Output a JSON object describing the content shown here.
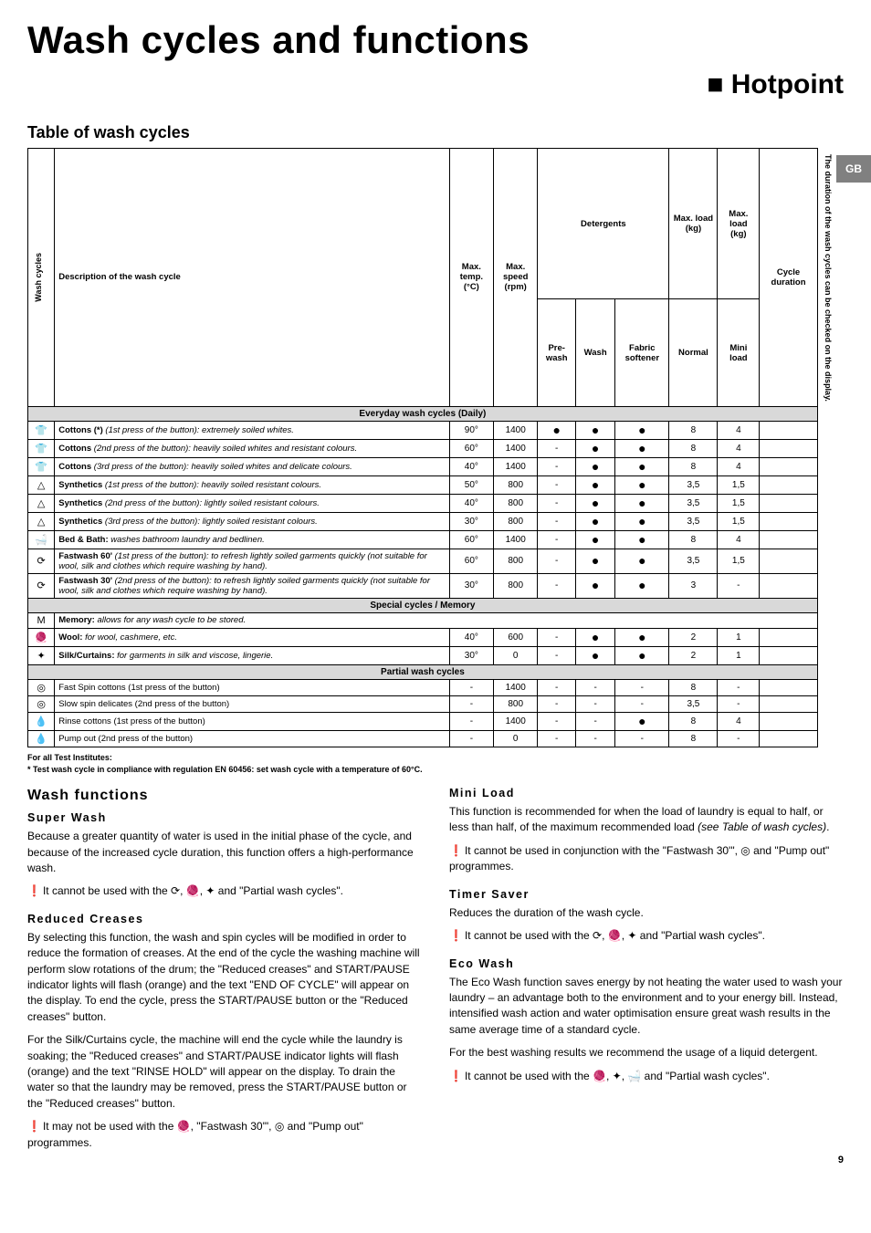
{
  "page": {
    "title": "Wash cycles and functions",
    "brand": "Hotpoint",
    "region_tag": "GB",
    "page_number": "9"
  },
  "table": {
    "heading": "Table of wash cycles",
    "columns": {
      "wash_cycles": "Wash cycles",
      "description": "Description of the wash cycle",
      "max_temp": "Max. temp. (°C)",
      "max_speed": "Max. speed (rpm)",
      "detergents": "Detergents",
      "pre_wash": "Pre-wash",
      "wash": "Wash",
      "fabric_softener": "Fabric softener",
      "max_load_normal": "Max. load (kg)",
      "normal": "Normal",
      "max_load_mini": "Max. load (kg)",
      "mini_load": "Mini load",
      "cycle_duration": "Cycle duration"
    },
    "side_note": "The duration of the wash cycles can be checked on the display.",
    "categories": {
      "everyday": "Everyday wash cycles (Daily)",
      "special": "Special cycles / Memory",
      "partial": "Partial wash cycles"
    },
    "rows": [
      {
        "cat": "everyday",
        "icon": "👕",
        "desc": "Cottons (*) (1st press of the button): extremely soiled whites.",
        "bold": "Cottons (*)",
        "temp": "90°",
        "rpm": "1400",
        "pre": "●",
        "wash": "●",
        "soft": "●",
        "normal": "8",
        "mini": "4"
      },
      {
        "cat": "everyday",
        "icon": "👕",
        "desc": "Cottons (2nd press of the button): heavily soiled whites and resistant colours.",
        "bold": "Cottons",
        "temp": "60°",
        "rpm": "1400",
        "pre": "-",
        "wash": "●",
        "soft": "●",
        "normal": "8",
        "mini": "4"
      },
      {
        "cat": "everyday",
        "icon": "👕",
        "desc": "Cottons (3rd press of the button): heavily soiled whites and delicate colours.",
        "bold": "Cottons",
        "temp": "40°",
        "rpm": "1400",
        "pre": "-",
        "wash": "●",
        "soft": "●",
        "normal": "8",
        "mini": "4"
      },
      {
        "cat": "everyday",
        "icon": "△",
        "desc": "Synthetics (1st press of the button): heavily soiled resistant colours.",
        "bold": "Synthetics",
        "temp": "50°",
        "rpm": "800",
        "pre": "-",
        "wash": "●",
        "soft": "●",
        "normal": "3,5",
        "mini": "1,5"
      },
      {
        "cat": "everyday",
        "icon": "△",
        "desc": "Synthetics (2nd press of the button): lightly soiled resistant colours.",
        "bold": "Synthetics",
        "temp": "40°",
        "rpm": "800",
        "pre": "-",
        "wash": "●",
        "soft": "●",
        "normal": "3,5",
        "mini": "1,5"
      },
      {
        "cat": "everyday",
        "icon": "△",
        "desc": "Synthetics (3rd press of the button): lightly soiled resistant colours.",
        "bold": "Synthetics",
        "temp": "30°",
        "rpm": "800",
        "pre": "-",
        "wash": "●",
        "soft": "●",
        "normal": "3,5",
        "mini": "1,5"
      },
      {
        "cat": "everyday",
        "icon": "🛁",
        "desc": "Bed & Bath: washes bathroom laundry and bedlinen.",
        "bold": "Bed & Bath:",
        "temp": "60°",
        "rpm": "1400",
        "pre": "-",
        "wash": "●",
        "soft": "●",
        "normal": "8",
        "mini": "4"
      },
      {
        "cat": "everyday",
        "icon": "⟳",
        "desc": "Fastwash 60' (1st press of the button): to refresh lightly soiled garments quickly (not suitable for wool, silk and clothes which require washing by hand).",
        "bold": "Fastwash 60'",
        "temp": "60°",
        "rpm": "800",
        "pre": "-",
        "wash": "●",
        "soft": "●",
        "normal": "3,5",
        "mini": "1,5"
      },
      {
        "cat": "everyday",
        "icon": "⟳",
        "desc": "Fastwash 30' (2nd press of the button): to refresh lightly soiled garments quickly (not suitable for wool, silk and clothes which require washing by hand).",
        "bold": "Fastwash 30'",
        "temp": "30°",
        "rpm": "800",
        "pre": "-",
        "wash": "●",
        "soft": "●",
        "normal": "3",
        "mini": "-"
      },
      {
        "cat": "special",
        "icon": "M",
        "desc": "Memory: allows for any wash cycle to be stored.",
        "bold": "Memory:",
        "temp": "",
        "rpm": "",
        "pre": "",
        "wash": "",
        "soft": "",
        "normal": "",
        "mini": ""
      },
      {
        "cat": "special",
        "icon": "🧶",
        "desc": "Wool: for wool, cashmere, etc.",
        "bold": "Wool:",
        "temp": "40°",
        "rpm": "600",
        "pre": "-",
        "wash": "●",
        "soft": "●",
        "normal": "2",
        "mini": "1"
      },
      {
        "cat": "special",
        "icon": "✦",
        "desc": "Silk/Curtains: for garments in silk and viscose, lingerie.",
        "bold": "Silk/Curtains:",
        "temp": "30°",
        "rpm": "0",
        "pre": "-",
        "wash": "●",
        "soft": "●",
        "normal": "2",
        "mini": "1"
      },
      {
        "cat": "partial",
        "icon": "◎",
        "desc": "Fast Spin cottons (1st press of the button)",
        "bold": "",
        "temp": "-",
        "rpm": "1400",
        "pre": "-",
        "wash": "-",
        "soft": "-",
        "normal": "8",
        "mini": "-"
      },
      {
        "cat": "partial",
        "icon": "◎",
        "desc": "Slow spin delicates (2nd press of the button)",
        "bold": "",
        "temp": "-",
        "rpm": "800",
        "pre": "-",
        "wash": "-",
        "soft": "-",
        "normal": "3,5",
        "mini": "-"
      },
      {
        "cat": "partial",
        "icon": "💧",
        "desc": "Rinse cottons (1st press of the button)",
        "bold": "",
        "temp": "-",
        "rpm": "1400",
        "pre": "-",
        "wash": "-",
        "soft": "●",
        "normal": "8",
        "mini": "4"
      },
      {
        "cat": "partial",
        "icon": "💧",
        "desc": "Pump out (2nd press of the button)",
        "bold": "",
        "temp": "-",
        "rpm": "0",
        "pre": "-",
        "wash": "-",
        "soft": "-",
        "normal": "8",
        "mini": "-"
      }
    ],
    "footnotes": [
      "For all Test Institutes:",
      "* Test wash cycle in compliance with regulation EN 60456: set wash cycle with a temperature of 60°C."
    ]
  },
  "functions": {
    "heading": "Wash functions",
    "left": [
      {
        "title": "Super Wash",
        "body": "Because a greater quantity of water is used in the initial phase of the cycle, and because of the increased cycle duration, this function offers a high-performance wash.",
        "warn": "It cannot be used with the ⟳, 🧶, ✦ and \"Partial wash cycles\"."
      },
      {
        "title": "Reduced Creases",
        "body": "By selecting this function, the wash and spin cycles will be modified in order to reduce the formation of creases. At the end of the cycle the washing machine will perform slow rotations of the drum; the \"Reduced creases\" and START/PAUSE indicator lights will flash (orange) and the text \"END OF CYCLE\" will appear on the display. To end the cycle, press the START/PAUSE button or the \"Reduced creases\" button.\nFor the Silk/Curtains cycle, the machine will end the cycle while the laundry is soaking; the \"Reduced creases\" and START/PAUSE indicator lights will flash (orange) and the text \"RINSE HOLD\" will appear on the display. To drain the water so that the laundry may be removed, press the START/PAUSE button or the \"Reduced creases\" button.",
        "warn": "It may not be used with the 🧶, \"Fastwash 30'\", ◎ and \"Pump out\" programmes."
      }
    ],
    "right": [
      {
        "title": "Mini Load",
        "body": "This function is recommended for when the load of laundry is equal to half, or less than half, of the maximum recommended load (see Table of wash cycles).",
        "warn": "It cannot be used in conjunction with the \"Fastwash 30'\", ◎ and \"Pump out\" programmes."
      },
      {
        "title": "Timer Saver",
        "body": "Reduces the duration of the wash cycle.",
        "warn": "It cannot be used with the ⟳, 🧶, ✦ and \"Partial wash cycles\"."
      },
      {
        "title": "Eco Wash",
        "body": "The Eco Wash function saves energy by not heating the water used to wash your laundry – an advantage both to the environment and to your energy bill. Instead, intensified wash action and water optimisation ensure great wash results in the same average time of a standard cycle.\nFor the best washing results we recommend the usage of a liquid detergent.",
        "warn": "It cannot be used with the 🧶, ✦, 🛁 and \"Partial wash cycles\"."
      }
    ]
  }
}
